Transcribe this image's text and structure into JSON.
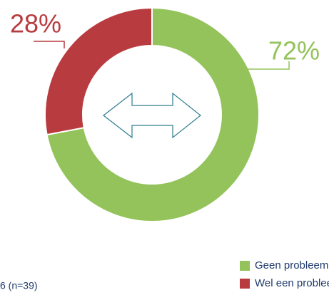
{
  "chart_data": {
    "type": "pie",
    "donut": true,
    "categories": [
      "Geen probleem",
      "Wel een probleem"
    ],
    "values": [
      72,
      28
    ],
    "value_labels": [
      "72%",
      "28%"
    ],
    "colors": [
      "#93c35a",
      "#b83b3f"
    ],
    "footnote": "6 (n=39)"
  }
}
